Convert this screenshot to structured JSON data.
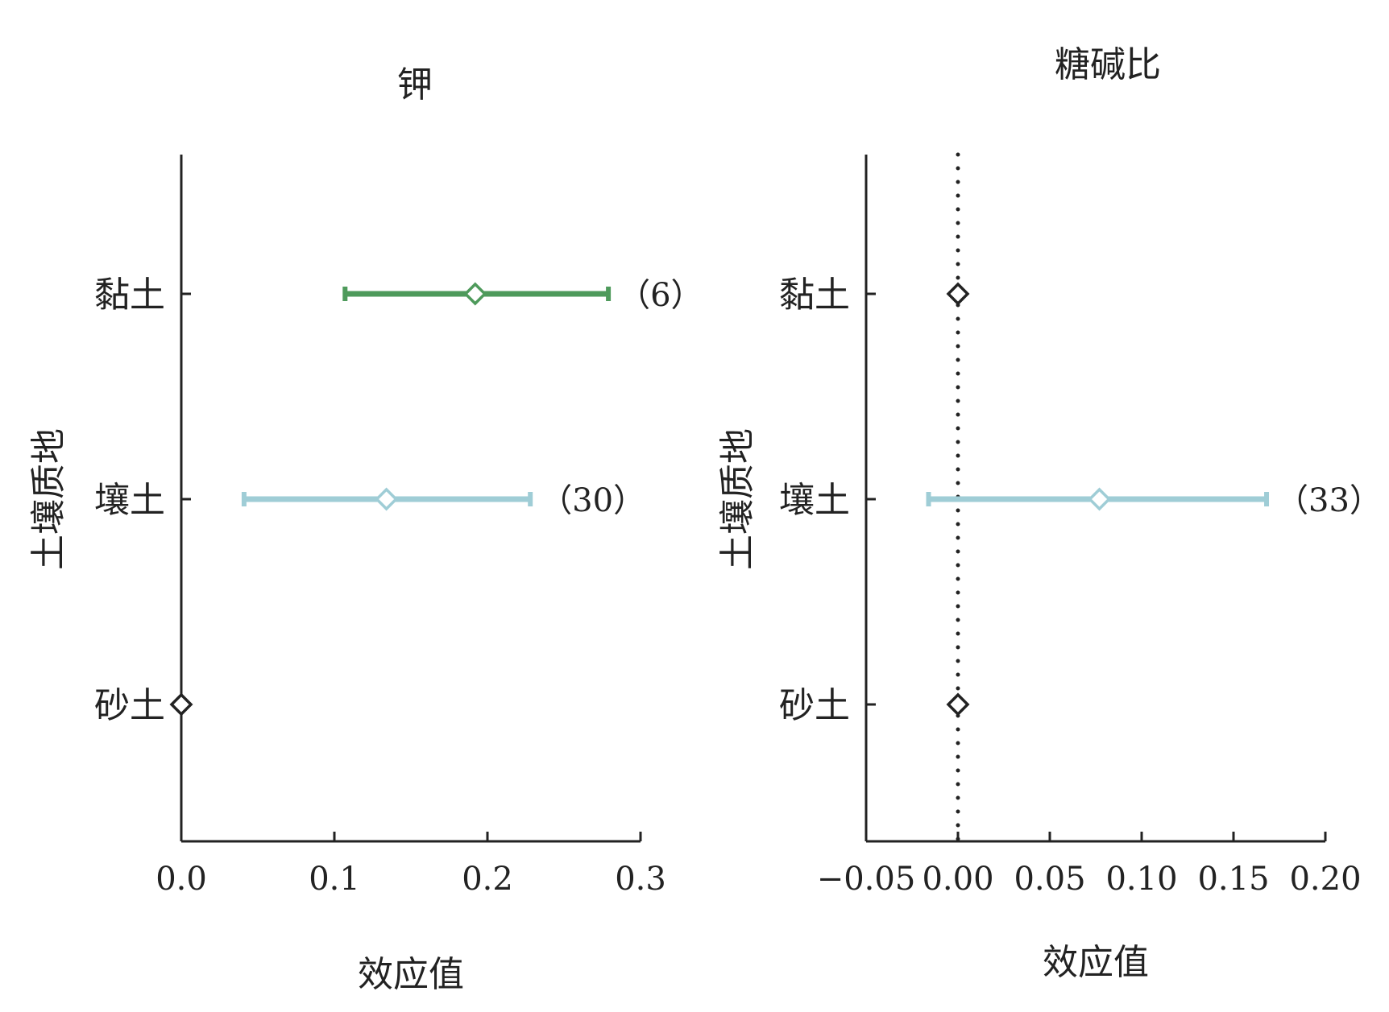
{
  "chart_data": [
    {
      "type": "errorbar",
      "title": "钾",
      "xlabel": "效应值",
      "ylabel": "土壤质地",
      "xlim": [
        0,
        0.3
      ],
      "xticks": [
        "0.0",
        "0.1",
        "0.2",
        "0.3"
      ],
      "zero_line": false,
      "categories": [
        "黏土",
        "壤土",
        "砂土"
      ],
      "points": [
        {
          "category": "黏土",
          "estimate": 0.192,
          "ci_low": 0.107,
          "ci_high": 0.279,
          "n_label": "（6）",
          "color": "#4e9a5b"
        },
        {
          "category": "壤土",
          "estimate": 0.134,
          "ci_low": 0.041,
          "ci_high": 0.228,
          "n_label": "（30）",
          "color": "#9fcdd6"
        },
        {
          "category": "砂土",
          "estimate": 0.0,
          "ci_low": null,
          "ci_high": null,
          "n_label": "",
          "color": "#222222"
        }
      ]
    },
    {
      "type": "errorbar",
      "title": "糖碱比",
      "xlabel": "效应值",
      "ylabel": "土壤质地",
      "xlim": [
        -0.05,
        0.2
      ],
      "xticks": [
        "−0.05",
        "0.00",
        "0.05",
        "0.10",
        "0.15",
        "0.20"
      ],
      "zero_line": true,
      "categories": [
        "黏土",
        "壤土",
        "砂土"
      ],
      "points": [
        {
          "category": "黏土",
          "estimate": 0.0,
          "ci_low": null,
          "ci_high": null,
          "n_label": "",
          "color": "#222222"
        },
        {
          "category": "壤土",
          "estimate": 0.077,
          "ci_low": -0.016,
          "ci_high": 0.168,
          "n_label": "（33）",
          "color": "#9fcdd6"
        },
        {
          "category": "砂土",
          "estimate": 0.0,
          "ci_low": null,
          "ci_high": null,
          "n_label": "",
          "color": "#222222"
        }
      ]
    }
  ]
}
